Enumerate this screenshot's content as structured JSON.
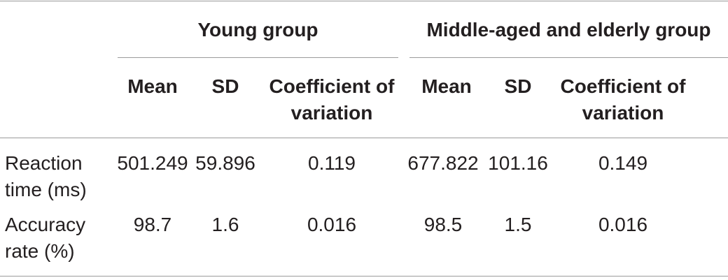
{
  "table": {
    "group_headers": {
      "young": "Young group",
      "middle_elderly": "Middle-aged and elderly group"
    },
    "column_headers": {
      "young_mean": "Mean",
      "young_sd": "SD",
      "young_cv_line1": "Coefficient of",
      "young_cv_line2": "variation",
      "mid_mean": "Mean",
      "mid_sd": "SD",
      "mid_cv_line1": "Coefficient of",
      "mid_cv_line2": "variation"
    },
    "rows": [
      {
        "label_line1": "Reaction",
        "label_line2": "time (ms)",
        "young_mean": "501.249",
        "young_sd": "59.896",
        "young_cv": "0.119",
        "mid_mean": "677.822",
        "mid_sd": "101.16",
        "mid_cv": "0.149"
      },
      {
        "label_line1": "Accuracy",
        "label_line2": "rate (%)",
        "young_mean": "98.7",
        "young_sd": "1.6",
        "young_cv": "0.016",
        "mid_mean": "98.5",
        "mid_sd": "1.5",
        "mid_cv": "0.016"
      }
    ]
  }
}
